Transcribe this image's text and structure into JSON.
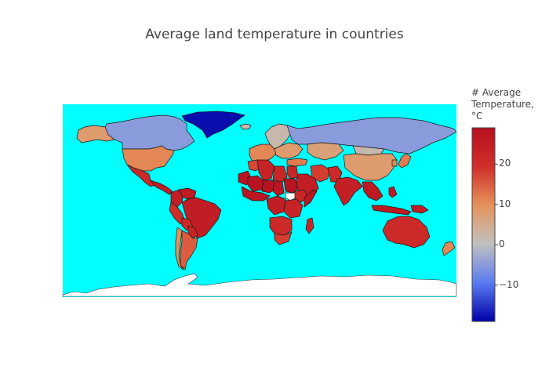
{
  "title": "Average land temperature in countries",
  "colors": {
    "ocean": "#00ffff",
    "antarctica": "#ffffff",
    "border": "#1a1a1a",
    "no_data": "#ffffff",
    "scale": [
      "#0000a6",
      "#5b7cf0",
      "#c0c0c0",
      "#e5935b",
      "#d02f2a",
      "#b5101f"
    ]
  },
  "colorbar": {
    "title_lines": [
      "# Average",
      "Temperature,",
      "°C"
    ],
    "range": [
      -19,
      29
    ],
    "ticks": [
      {
        "value": 20,
        "label": "20"
      },
      {
        "value": 10,
        "label": "10"
      },
      {
        "value": 0,
        "label": "0"
      },
      {
        "value": -10,
        "label": "−10"
      }
    ]
  },
  "chart_data": {
    "type": "choropleth",
    "title": "Average land temperature in countries",
    "colorbar_title": "# Average Temperature, °C",
    "color_range": [
      -19,
      29
    ],
    "projection": "equirectangular",
    "regions": [
      {
        "name": "Greenland",
        "value": -18
      },
      {
        "name": "Canada",
        "value": -5
      },
      {
        "name": "Alaska",
        "value": 8
      },
      {
        "name": "United States",
        "value": 11
      },
      {
        "name": "Mexico",
        "value": 21
      },
      {
        "name": "Central America",
        "value": 25
      },
      {
        "name": "Colombia",
        "value": 25
      },
      {
        "name": "Venezuela",
        "value": 26
      },
      {
        "name": "Brazil",
        "value": 25
      },
      {
        "name": "Peru",
        "value": 20
      },
      {
        "name": "Bolivia",
        "value": 21
      },
      {
        "name": "Paraguay",
        "value": 23
      },
      {
        "name": "Chile",
        "value": 10
      },
      {
        "name": "Argentina",
        "value": 15
      },
      {
        "name": "Iceland",
        "value": 2
      },
      {
        "name": "Scandinavia",
        "value": 2
      },
      {
        "name": "Western Europe",
        "value": 11
      },
      {
        "name": "Eastern Europe",
        "value": 8
      },
      {
        "name": "Russia",
        "value": -5
      },
      {
        "name": "Kazakhstan",
        "value": 7
      },
      {
        "name": "Mongolia",
        "value": 2
      },
      {
        "name": "China",
        "value": 8
      },
      {
        "name": "Turkey",
        "value": 12
      },
      {
        "name": "Iran",
        "value": 18
      },
      {
        "name": "Saudi Arabia",
        "value": 25
      },
      {
        "name": "Pakistan",
        "value": 21
      },
      {
        "name": "India",
        "value": 24
      },
      {
        "name": "Southeast Asia",
        "value": 26
      },
      {
        "name": "Japan",
        "value": 12
      },
      {
        "name": "Korea",
        "value": 11
      },
      {
        "name": "Indonesia",
        "value": 26
      },
      {
        "name": "Philippines",
        "value": 26
      },
      {
        "name": "Papua New Guinea",
        "value": 25
      },
      {
        "name": "Australia",
        "value": 21
      },
      {
        "name": "New Zealand",
        "value": 11
      },
      {
        "name": "Morocco",
        "value": 17
      },
      {
        "name": "Algeria",
        "value": 23
      },
      {
        "name": "Libya",
        "value": 22
      },
      {
        "name": "Egypt",
        "value": 22
      },
      {
        "name": "Mauritania",
        "value": 28
      },
      {
        "name": "Mali",
        "value": 28
      },
      {
        "name": "Niger",
        "value": 28
      },
      {
        "name": "Chad",
        "value": 27
      },
      {
        "name": "Sudan",
        "value": 28
      },
      {
        "name": "South Sudan",
        "value": null
      },
      {
        "name": "Ethiopia",
        "value": 22
      },
      {
        "name": "Somalia",
        "value": 27
      },
      {
        "name": "West Africa",
        "value": 27
      },
      {
        "name": "Central Africa",
        "value": 25
      },
      {
        "name": "East Africa",
        "value": 23
      },
      {
        "name": "Southern Africa",
        "value": 21
      },
      {
        "name": "South Africa",
        "value": 18
      },
      {
        "name": "Madagascar",
        "value": 22
      }
    ]
  }
}
